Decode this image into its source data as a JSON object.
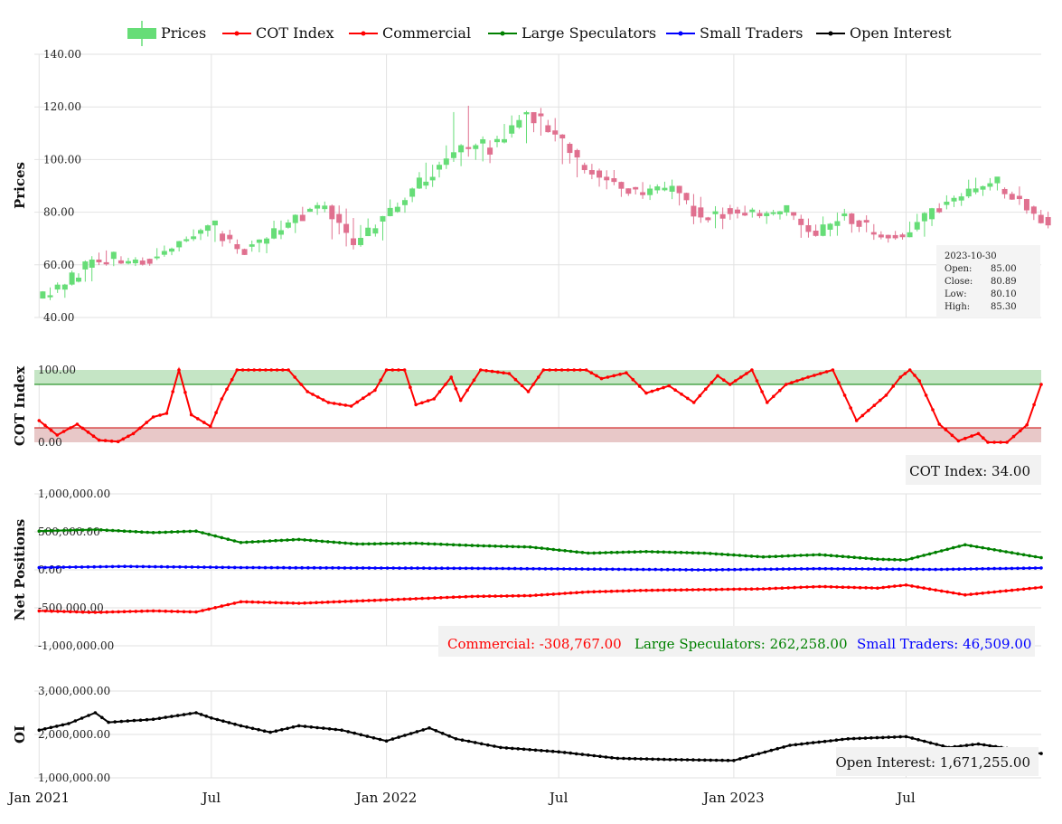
{
  "legend": [
    {
      "label": "Prices",
      "color": "#66dd77",
      "kind": "bar"
    },
    {
      "label": "COT Index",
      "color": "#ff0000",
      "kind": "line"
    },
    {
      "label": "Commercial",
      "color": "#ff0000",
      "kind": "line"
    },
    {
      "label": "Large Speculators",
      "color": "#008000",
      "kind": "line"
    },
    {
      "label": "Small Traders",
      "color": "#0000ff",
      "kind": "line"
    },
    {
      "label": "Open Interest",
      "color": "#000000",
      "kind": "line"
    }
  ],
  "colors": {
    "up": "#66dd77",
    "down": "#e0708f",
    "commercial": "#ff0000",
    "large": "#008000",
    "small": "#0000ff",
    "oi": "#000000",
    "cot": "#ff0000",
    "upper_band": "#c5e5c5",
    "lower_band": "#e8c8c8"
  },
  "x_axis": {
    "ticks": [
      {
        "label": "Jan 2021",
        "date": "2021-01-01"
      },
      {
        "label": "Jul",
        "date": "2021-07-01"
      },
      {
        "label": "Jan 2022",
        "date": "2022-01-01"
      },
      {
        "label": "Jul",
        "date": "2022-07-01"
      },
      {
        "label": "Jan 2023",
        "date": "2023-01-01"
      },
      {
        "label": "Jul",
        "date": "2023-07-01"
      }
    ],
    "range": [
      "2020-12-27",
      "2023-11-20"
    ]
  },
  "chart_data": [
    {
      "type": "candlestick",
      "ylabel": "Prices",
      "ylim": [
        40,
        140
      ],
      "yticks": [
        "40.00",
        "60.00",
        "80.00",
        "100.00",
        "120.00",
        "140.00"
      ],
      "monthly": [
        {
          "d": "2021-01",
          "o": 47.2,
          "h": 54.0,
          "l": 45.0,
          "c": 52.5
        },
        {
          "d": "2021-02",
          "o": 52.5,
          "h": 64.0,
          "l": 51.0,
          "c": 62.0
        },
        {
          "d": "2021-03",
          "o": 62.0,
          "h": 68.0,
          "l": 58.0,
          "c": 60.5
        },
        {
          "d": "2021-04",
          "o": 60.5,
          "h": 64.5,
          "l": 58.5,
          "c": 62.5
        },
        {
          "d": "2021-05",
          "o": 62.5,
          "h": 70.0,
          "l": 61.5,
          "c": 69.0
        },
        {
          "d": "2021-06",
          "o": 69.0,
          "h": 76.0,
          "l": 68.0,
          "c": 75.0
        },
        {
          "d": "2021-07",
          "o": 75.0,
          "h": 76.5,
          "l": 62.0,
          "c": 66.0
        },
        {
          "d": "2021-08",
          "o": 66.0,
          "h": 71.0,
          "l": 61.0,
          "c": 70.0
        },
        {
          "d": "2021-09",
          "o": 70.0,
          "h": 80.0,
          "l": 69.0,
          "c": 79.0
        },
        {
          "d": "2021-10",
          "o": 79.0,
          "h": 85.0,
          "l": 77.5,
          "c": 82.5
        },
        {
          "d": "2021-11",
          "o": 82.5,
          "h": 84.5,
          "l": 64.0,
          "c": 67.5
        },
        {
          "d": "2021-12",
          "o": 67.5,
          "h": 80.0,
          "l": 65.5,
          "c": 78.5
        },
        {
          "d": "2022-01",
          "o": 78.5,
          "h": 90.0,
          "l": 77.0,
          "c": 89.0
        },
        {
          "d": "2022-02",
          "o": 89.0,
          "h": 102.0,
          "l": 88.0,
          "c": 98.0
        },
        {
          "d": "2022-03",
          "o": 98.0,
          "h": 130.0,
          "l": 94.0,
          "c": 104.0
        },
        {
          "d": "2022-04",
          "o": 104.0,
          "h": 111.0,
          "l": 93.0,
          "c": 106.5
        },
        {
          "d": "2022-05",
          "o": 106.5,
          "h": 119.0,
          "l": 98.0,
          "c": 118.0
        },
        {
          "d": "2022-06",
          "o": 118.0,
          "h": 123.5,
          "l": 104.0,
          "c": 109.5
        },
        {
          "d": "2022-07",
          "o": 109.5,
          "h": 111.0,
          "l": 88.5,
          "c": 96.0
        },
        {
          "d": "2022-08",
          "o": 96.0,
          "h": 100.0,
          "l": 87.0,
          "c": 91.5
        },
        {
          "d": "2022-09",
          "o": 91.5,
          "h": 95.0,
          "l": 82.0,
          "c": 86.5
        },
        {
          "d": "2022-10",
          "o": 86.5,
          "h": 94.0,
          "l": 80.0,
          "c": 90.0
        },
        {
          "d": "2022-11",
          "o": 90.0,
          "h": 91.0,
          "l": 73.0,
          "c": 78.0
        },
        {
          "d": "2022-12",
          "o": 78.0,
          "h": 84.0,
          "l": 71.5,
          "c": 81.0
        },
        {
          "d": "2023-01",
          "o": 81.0,
          "h": 84.0,
          "l": 76.0,
          "c": 78.5
        },
        {
          "d": "2023-02",
          "o": 78.5,
          "h": 81.5,
          "l": 74.0,
          "c": 80.0
        },
        {
          "d": "2023-03",
          "o": 80.0,
          "h": 81.0,
          "l": 64.0,
          "c": 71.0
        },
        {
          "d": "2023-04",
          "o": 71.0,
          "h": 83.0,
          "l": 69.0,
          "c": 79.5
        },
        {
          "d": "2023-05",
          "o": 79.5,
          "h": 80.0,
          "l": 65.0,
          "c": 71.5
        },
        {
          "d": "2023-06",
          "o": 71.5,
          "h": 75.0,
          "l": 67.0,
          "c": 70.5
        },
        {
          "d": "2023-07",
          "o": 70.5,
          "h": 82.0,
          "l": 67.5,
          "c": 81.5
        },
        {
          "d": "2023-08",
          "o": 81.5,
          "h": 88.0,
          "l": 79.5,
          "c": 86.0
        },
        {
          "d": "2023-09",
          "o": 86.0,
          "h": 95.0,
          "l": 84.5,
          "c": 91.0
        },
        {
          "d": "2023-10",
          "o": 91.0,
          "h": 91.5,
          "l": 80.0,
          "c": 85.0
        },
        {
          "d": "2023-11",
          "o": 85.0,
          "h": 85.3,
          "l": 73.0,
          "c": 75.0
        }
      ],
      "tooltip": {
        "date": "2023-10-30",
        "rows": [
          {
            "label": "Open:",
            "value": "85.00"
          },
          {
            "label": "Close:",
            "value": "80.89"
          },
          {
            "label": "Low:",
            "value": "80.10"
          },
          {
            "label": "High:",
            "value": "85.30"
          }
        ]
      }
    },
    {
      "type": "line",
      "ylabel": "COT Index",
      "ylim": [
        0,
        100
      ],
      "yticks": [
        "0.00",
        "100.00"
      ],
      "upper_band": [
        80,
        100
      ],
      "lower_band": [
        0,
        20
      ],
      "series": [
        {
          "name": "COT Index",
          "color": "#ff0000",
          "points": [
            [
              "2021-01-01",
              30
            ],
            [
              "2021-01-20",
              10
            ],
            [
              "2021-02-10",
              25
            ],
            [
              "2021-03-05",
              3
            ],
            [
              "2021-03-25",
              1
            ],
            [
              "2021-04-10",
              12
            ],
            [
              "2021-05-01",
              35
            ],
            [
              "2021-05-15",
              40
            ],
            [
              "2021-05-28",
              100
            ],
            [
              "2021-06-10",
              38
            ],
            [
              "2021-06-30",
              22
            ],
            [
              "2021-07-12",
              60
            ],
            [
              "2021-07-28",
              100
            ],
            [
              "2021-09-20",
              100
            ],
            [
              "2021-10-10",
              70
            ],
            [
              "2021-11-01",
              55
            ],
            [
              "2021-11-25",
              50
            ],
            [
              "2021-12-20",
              72
            ],
            [
              "2022-01-01",
              100
            ],
            [
              "2022-01-20",
              100
            ],
            [
              "2022-02-01",
              52
            ],
            [
              "2022-02-20",
              60
            ],
            [
              "2022-03-10",
              90
            ],
            [
              "2022-03-20",
              58
            ],
            [
              "2022-04-10",
              100
            ],
            [
              "2022-05-10",
              95
            ],
            [
              "2022-05-30",
              70
            ],
            [
              "2022-06-15",
              100
            ],
            [
              "2022-07-30",
              100
            ],
            [
              "2022-08-15",
              88
            ],
            [
              "2022-09-10",
              96
            ],
            [
              "2022-10-01",
              68
            ],
            [
              "2022-10-25",
              78
            ],
            [
              "2022-11-20",
              55
            ],
            [
              "2022-12-15",
              92
            ],
            [
              "2022-12-28",
              80
            ],
            [
              "2023-01-20",
              100
            ],
            [
              "2023-02-05",
              55
            ],
            [
              "2023-02-25",
              80
            ],
            [
              "2023-03-20",
              90
            ],
            [
              "2023-04-15",
              100
            ],
            [
              "2023-05-10",
              30
            ],
            [
              "2023-06-10",
              65
            ],
            [
              "2023-06-25",
              90
            ],
            [
              "2023-07-05",
              100
            ],
            [
              "2023-07-15",
              85
            ],
            [
              "2023-08-05",
              25
            ],
            [
              "2023-08-25",
              2
            ],
            [
              "2023-09-15",
              12
            ],
            [
              "2023-09-25",
              0
            ],
            [
              "2023-10-15",
              0
            ],
            [
              "2023-11-05",
              24
            ],
            [
              "2023-11-20",
              80
            ]
          ]
        }
      ],
      "readout": {
        "label": "COT Index:",
        "value": "34.00"
      }
    },
    {
      "type": "line",
      "ylabel": "Net Positions",
      "ylim": [
        -1000000,
        1000000
      ],
      "yticks": [
        "-1,000,000.00",
        "-500,000.00",
        "0.00",
        "500,000.00",
        "1,000,000.00"
      ],
      "series": [
        {
          "name": "Commercial",
          "color": "#ff0000",
          "points": [
            [
              "2021-01-01",
              -540000
            ],
            [
              "2021-03-01",
              -560000
            ],
            [
              "2021-05-01",
              -540000
            ],
            [
              "2021-06-15",
              -555000
            ],
            [
              "2021-08-01",
              -420000
            ],
            [
              "2021-10-01",
              -440000
            ],
            [
              "2021-12-01",
              -410000
            ],
            [
              "2022-02-01",
              -380000
            ],
            [
              "2022-04-01",
              -350000
            ],
            [
              "2022-06-01",
              -340000
            ],
            [
              "2022-08-01",
              -290000
            ],
            [
              "2022-10-01",
              -270000
            ],
            [
              "2022-12-01",
              -260000
            ],
            [
              "2023-02-01",
              -250000
            ],
            [
              "2023-04-01",
              -220000
            ],
            [
              "2023-06-01",
              -240000
            ],
            [
              "2023-07-01",
              -200000
            ],
            [
              "2023-09-01",
              -330000
            ],
            [
              "2023-11-20",
              -230000
            ]
          ]
        },
        {
          "name": "Large Speculators",
          "color": "#008000",
          "points": [
            [
              "2021-01-01",
              510000
            ],
            [
              "2021-03-01",
              530000
            ],
            [
              "2021-05-01",
              490000
            ],
            [
              "2021-06-15",
              510000
            ],
            [
              "2021-08-01",
              360000
            ],
            [
              "2021-10-01",
              400000
            ],
            [
              "2021-12-01",
              340000
            ],
            [
              "2022-02-01",
              350000
            ],
            [
              "2022-04-01",
              320000
            ],
            [
              "2022-06-01",
              300000
            ],
            [
              "2022-08-01",
              220000
            ],
            [
              "2022-10-01",
              240000
            ],
            [
              "2022-12-01",
              220000
            ],
            [
              "2023-02-01",
              170000
            ],
            [
              "2023-04-01",
              200000
            ],
            [
              "2023-06-01",
              140000
            ],
            [
              "2023-07-01",
              130000
            ],
            [
              "2023-09-01",
              330000
            ],
            [
              "2023-11-20",
              160000
            ]
          ]
        },
        {
          "name": "Small Traders",
          "color": "#0000ff",
          "points": [
            [
              "2021-01-01",
              30000
            ],
            [
              "2021-04-01",
              45000
            ],
            [
              "2021-08-01",
              30000
            ],
            [
              "2021-12-01",
              25000
            ],
            [
              "2022-04-01",
              20000
            ],
            [
              "2022-08-01",
              10000
            ],
            [
              "2022-12-01",
              0
            ],
            [
              "2023-04-01",
              15000
            ],
            [
              "2023-08-01",
              5000
            ],
            [
              "2023-11-20",
              25000
            ]
          ]
        }
      ],
      "readout": [
        {
          "label": "Commercial:",
          "value": "-308,767.00",
          "color": "#ff0000"
        },
        {
          "label": "Large Speculators:",
          "value": "262,258.00",
          "color": "#008000"
        },
        {
          "label": "Small Traders:",
          "value": "46,509.00",
          "color": "#0000ff"
        }
      ]
    },
    {
      "type": "line",
      "ylabel": "OI",
      "ylim": [
        1000000,
        3000000
      ],
      "yticks": [
        "1,000,000.00",
        "2,000,000.00",
        "3,000,000.00"
      ],
      "series": [
        {
          "name": "Open Interest",
          "color": "#000000",
          "points": [
            [
              "2021-01-01",
              2100000
            ],
            [
              "2021-02-01",
              2250000
            ],
            [
              "2021-03-01",
              2500000
            ],
            [
              "2021-03-15",
              2280000
            ],
            [
              "2021-05-01",
              2350000
            ],
            [
              "2021-06-15",
              2500000
            ],
            [
              "2021-07-01",
              2380000
            ],
            [
              "2021-08-01",
              2200000
            ],
            [
              "2021-09-01",
              2050000
            ],
            [
              "2021-10-01",
              2200000
            ],
            [
              "2021-11-15",
              2100000
            ],
            [
              "2022-01-01",
              1850000
            ],
            [
              "2022-02-15",
              2150000
            ],
            [
              "2022-03-15",
              1900000
            ],
            [
              "2022-05-01",
              1700000
            ],
            [
              "2022-07-01",
              1600000
            ],
            [
              "2022-09-01",
              1450000
            ],
            [
              "2022-11-01",
              1420000
            ],
            [
              "2023-01-01",
              1400000
            ],
            [
              "2023-03-01",
              1750000
            ],
            [
              "2023-05-01",
              1900000
            ],
            [
              "2023-07-01",
              1950000
            ],
            [
              "2023-08-15",
              1700000
            ],
            [
              "2023-09-15",
              1780000
            ],
            [
              "2023-11-20",
              1560000
            ]
          ]
        }
      ],
      "readout": {
        "label": "Open Interest:",
        "value": "1,671,255.00"
      }
    }
  ]
}
